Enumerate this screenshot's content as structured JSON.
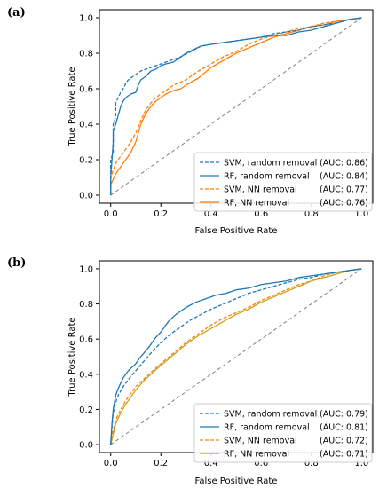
{
  "chart_data": [
    {
      "type": "line",
      "panel_label": "(a)",
      "xlabel": "False Positive Rate",
      "ylabel": "True Positive Rate",
      "xlim": [
        0,
        1
      ],
      "ylim": [
        0,
        1
      ],
      "ticks": [
        "0.0",
        "0.2",
        "0.4",
        "0.6",
        "0.8",
        "1.0"
      ],
      "grid": false,
      "legend_position": "lower-right",
      "diagonal": {
        "x": [
          0,
          1
        ],
        "y": [
          0,
          1
        ],
        "color": "#808080",
        "style": "dashed"
      },
      "series": [
        {
          "name": "SVM, random removal",
          "auc": "(AUC: 0.86)",
          "color": "#1f77b4",
          "style": "dashed",
          "x": [
            0,
            0,
            0.01,
            0.01,
            0.02,
            0.02,
            0.03,
            0.04,
            0.05,
            0.06,
            0.07,
            0.08,
            0.1,
            0.12,
            0.14,
            0.16,
            0.18,
            0.2,
            0.24,
            0.28,
            0.32,
            0.36,
            0.4,
            0.45,
            0.5,
            0.55,
            0.6,
            0.65,
            0.7,
            0.75,
            0.8,
            0.85,
            0.9,
            0.95,
            1.0
          ],
          "y": [
            0,
            0.2,
            0.24,
            0.4,
            0.44,
            0.52,
            0.55,
            0.58,
            0.6,
            0.63,
            0.65,
            0.66,
            0.68,
            0.7,
            0.71,
            0.72,
            0.73,
            0.74,
            0.76,
            0.78,
            0.81,
            0.84,
            0.85,
            0.86,
            0.87,
            0.88,
            0.89,
            0.91,
            0.92,
            0.93,
            0.95,
            0.96,
            0.97,
            0.99,
            1.0
          ]
        },
        {
          "name": "RF, random removal",
          "auc": "(AUC: 0.84)",
          "color": "#1f77b4",
          "style": "solid",
          "x": [
            0,
            0,
            0.01,
            0.01,
            0.02,
            0.03,
            0.04,
            0.05,
            0.06,
            0.08,
            0.1,
            0.11,
            0.12,
            0.14,
            0.16,
            0.18,
            0.2,
            0.22,
            0.25,
            0.28,
            0.3,
            0.33,
            0.36,
            0.4,
            0.45,
            0.5,
            0.55,
            0.6,
            0.65,
            0.7,
            0.75,
            0.8,
            0.85,
            0.9,
            0.95,
            1.0
          ],
          "y": [
            0,
            0.1,
            0.3,
            0.36,
            0.4,
            0.45,
            0.5,
            0.53,
            0.55,
            0.57,
            0.58,
            0.62,
            0.65,
            0.67,
            0.7,
            0.71,
            0.73,
            0.74,
            0.75,
            0.78,
            0.8,
            0.82,
            0.84,
            0.85,
            0.86,
            0.87,
            0.88,
            0.89,
            0.9,
            0.9,
            0.92,
            0.93,
            0.95,
            0.97,
            0.99,
            1.0
          ]
        },
        {
          "name": "SVM, NN removal",
          "auc": "(AUC: 0.77)",
          "color": "#ff7f0e",
          "style": "dashed",
          "x": [
            0,
            0,
            0.01,
            0.02,
            0.04,
            0.06,
            0.08,
            0.1,
            0.12,
            0.14,
            0.16,
            0.18,
            0.2,
            0.22,
            0.25,
            0.3,
            0.35,
            0.4,
            0.45,
            0.5,
            0.55,
            0.6,
            0.65,
            0.7,
            0.75,
            0.8,
            0.85,
            0.9,
            0.95,
            1.0
          ],
          "y": [
            0,
            0.1,
            0.14,
            0.18,
            0.22,
            0.26,
            0.3,
            0.35,
            0.42,
            0.48,
            0.52,
            0.55,
            0.57,
            0.59,
            0.62,
            0.65,
            0.7,
            0.74,
            0.78,
            0.81,
            0.85,
            0.88,
            0.9,
            0.92,
            0.94,
            0.95,
            0.97,
            0.98,
            0.99,
            1.0
          ]
        },
        {
          "name": "RF, NN removal",
          "auc": "(AUC: 0.76)",
          "color": "#ff7f0e",
          "style": "solid",
          "x": [
            0,
            0,
            0.02,
            0.04,
            0.06,
            0.08,
            0.1,
            0.12,
            0.14,
            0.16,
            0.18,
            0.2,
            0.22,
            0.25,
            0.28,
            0.3,
            0.35,
            0.4,
            0.45,
            0.5,
            0.55,
            0.6,
            0.65,
            0.7,
            0.75,
            0.8,
            0.85,
            0.9,
            0.95,
            1.0
          ],
          "y": [
            0,
            0.06,
            0.12,
            0.16,
            0.2,
            0.24,
            0.3,
            0.4,
            0.46,
            0.5,
            0.53,
            0.55,
            0.57,
            0.59,
            0.6,
            0.62,
            0.66,
            0.72,
            0.76,
            0.8,
            0.83,
            0.86,
            0.89,
            0.91,
            0.93,
            0.95,
            0.96,
            0.98,
            0.99,
            1.0
          ]
        }
      ]
    },
    {
      "type": "line",
      "panel_label": "(b)",
      "xlabel": "False Positive Rate",
      "ylabel": "True Positive Rate",
      "xlim": [
        0,
        1
      ],
      "ylim": [
        0,
        1
      ],
      "ticks": [
        "0.0",
        "0.2",
        "0.4",
        "0.6",
        "0.8",
        "1.0"
      ],
      "grid": false,
      "legend_position": "lower-right",
      "diagonal": {
        "x": [
          0,
          1
        ],
        "y": [
          0,
          1
        ],
        "color": "#808080",
        "style": "dashed"
      },
      "series": [
        {
          "name": "SVM, random removal",
          "auc": "(AUC: 0.79)",
          "color": "#1f77b4",
          "style": "dashed",
          "x": [
            0,
            0.005,
            0.01,
            0.02,
            0.03,
            0.05,
            0.07,
            0.1,
            0.13,
            0.16,
            0.2,
            0.24,
            0.28,
            0.32,
            0.36,
            0.4,
            0.45,
            0.5,
            0.55,
            0.6,
            0.65,
            0.7,
            0.75,
            0.8,
            0.85,
            0.9,
            0.95,
            1.0
          ],
          "y": [
            0,
            0.1,
            0.18,
            0.24,
            0.28,
            0.33,
            0.37,
            0.42,
            0.47,
            0.52,
            0.58,
            0.63,
            0.67,
            0.71,
            0.74,
            0.77,
            0.8,
            0.83,
            0.86,
            0.88,
            0.9,
            0.92,
            0.94,
            0.95,
            0.97,
            0.98,
            0.99,
            1.0
          ]
        },
        {
          "name": "RF, random removal",
          "auc": "(AUC: 0.81)",
          "color": "#1f77b4",
          "style": "solid",
          "x": [
            0,
            0.005,
            0.01,
            0.02,
            0.03,
            0.05,
            0.07,
            0.1,
            0.12,
            0.15,
            0.18,
            0.2,
            0.23,
            0.26,
            0.3,
            0.34,
            0.38,
            0.42,
            0.46,
            0.5,
            0.55,
            0.6,
            0.65,
            0.7,
            0.75,
            0.8,
            0.85,
            0.9,
            0.95,
            1.0
          ],
          "y": [
            0,
            0.12,
            0.2,
            0.28,
            0.32,
            0.38,
            0.42,
            0.46,
            0.5,
            0.55,
            0.61,
            0.64,
            0.7,
            0.74,
            0.78,
            0.81,
            0.83,
            0.85,
            0.86,
            0.88,
            0.89,
            0.91,
            0.92,
            0.93,
            0.95,
            0.96,
            0.97,
            0.98,
            0.99,
            1.0
          ]
        },
        {
          "name": "SVM, NN removal",
          "auc": "(AUC: 0.72)",
          "color": "#ff7f0e",
          "style": "dashed",
          "x": [
            0,
            0.01,
            0.02,
            0.04,
            0.06,
            0.08,
            0.1,
            0.13,
            0.16,
            0.2,
            0.25,
            0.3,
            0.35,
            0.4,
            0.45,
            0.5,
            0.55,
            0.6,
            0.65,
            0.7,
            0.75,
            0.8,
            0.85,
            0.9,
            0.95,
            1.0
          ],
          "y": [
            0,
            0.08,
            0.14,
            0.2,
            0.25,
            0.29,
            0.33,
            0.37,
            0.41,
            0.46,
            0.52,
            0.58,
            0.63,
            0.68,
            0.72,
            0.75,
            0.78,
            0.82,
            0.85,
            0.88,
            0.91,
            0.93,
            0.96,
            0.98,
            0.99,
            1.0
          ]
        },
        {
          "name": "RF, NN removal",
          "auc": "(AUC: 0.71)",
          "color": "#c8a416",
          "style": "solid",
          "x": [
            0,
            0.01,
            0.02,
            0.04,
            0.06,
            0.08,
            0.1,
            0.13,
            0.16,
            0.2,
            0.25,
            0.3,
            0.35,
            0.4,
            0.45,
            0.5,
            0.55,
            0.6,
            0.65,
            0.7,
            0.75,
            0.8,
            0.85,
            0.9,
            0.95,
            1.0
          ],
          "y": [
            0,
            0.06,
            0.12,
            0.18,
            0.23,
            0.27,
            0.31,
            0.36,
            0.4,
            0.45,
            0.51,
            0.57,
            0.62,
            0.66,
            0.7,
            0.74,
            0.77,
            0.81,
            0.84,
            0.87,
            0.9,
            0.93,
            0.95,
            0.97,
            0.99,
            1.0
          ]
        }
      ]
    }
  ]
}
